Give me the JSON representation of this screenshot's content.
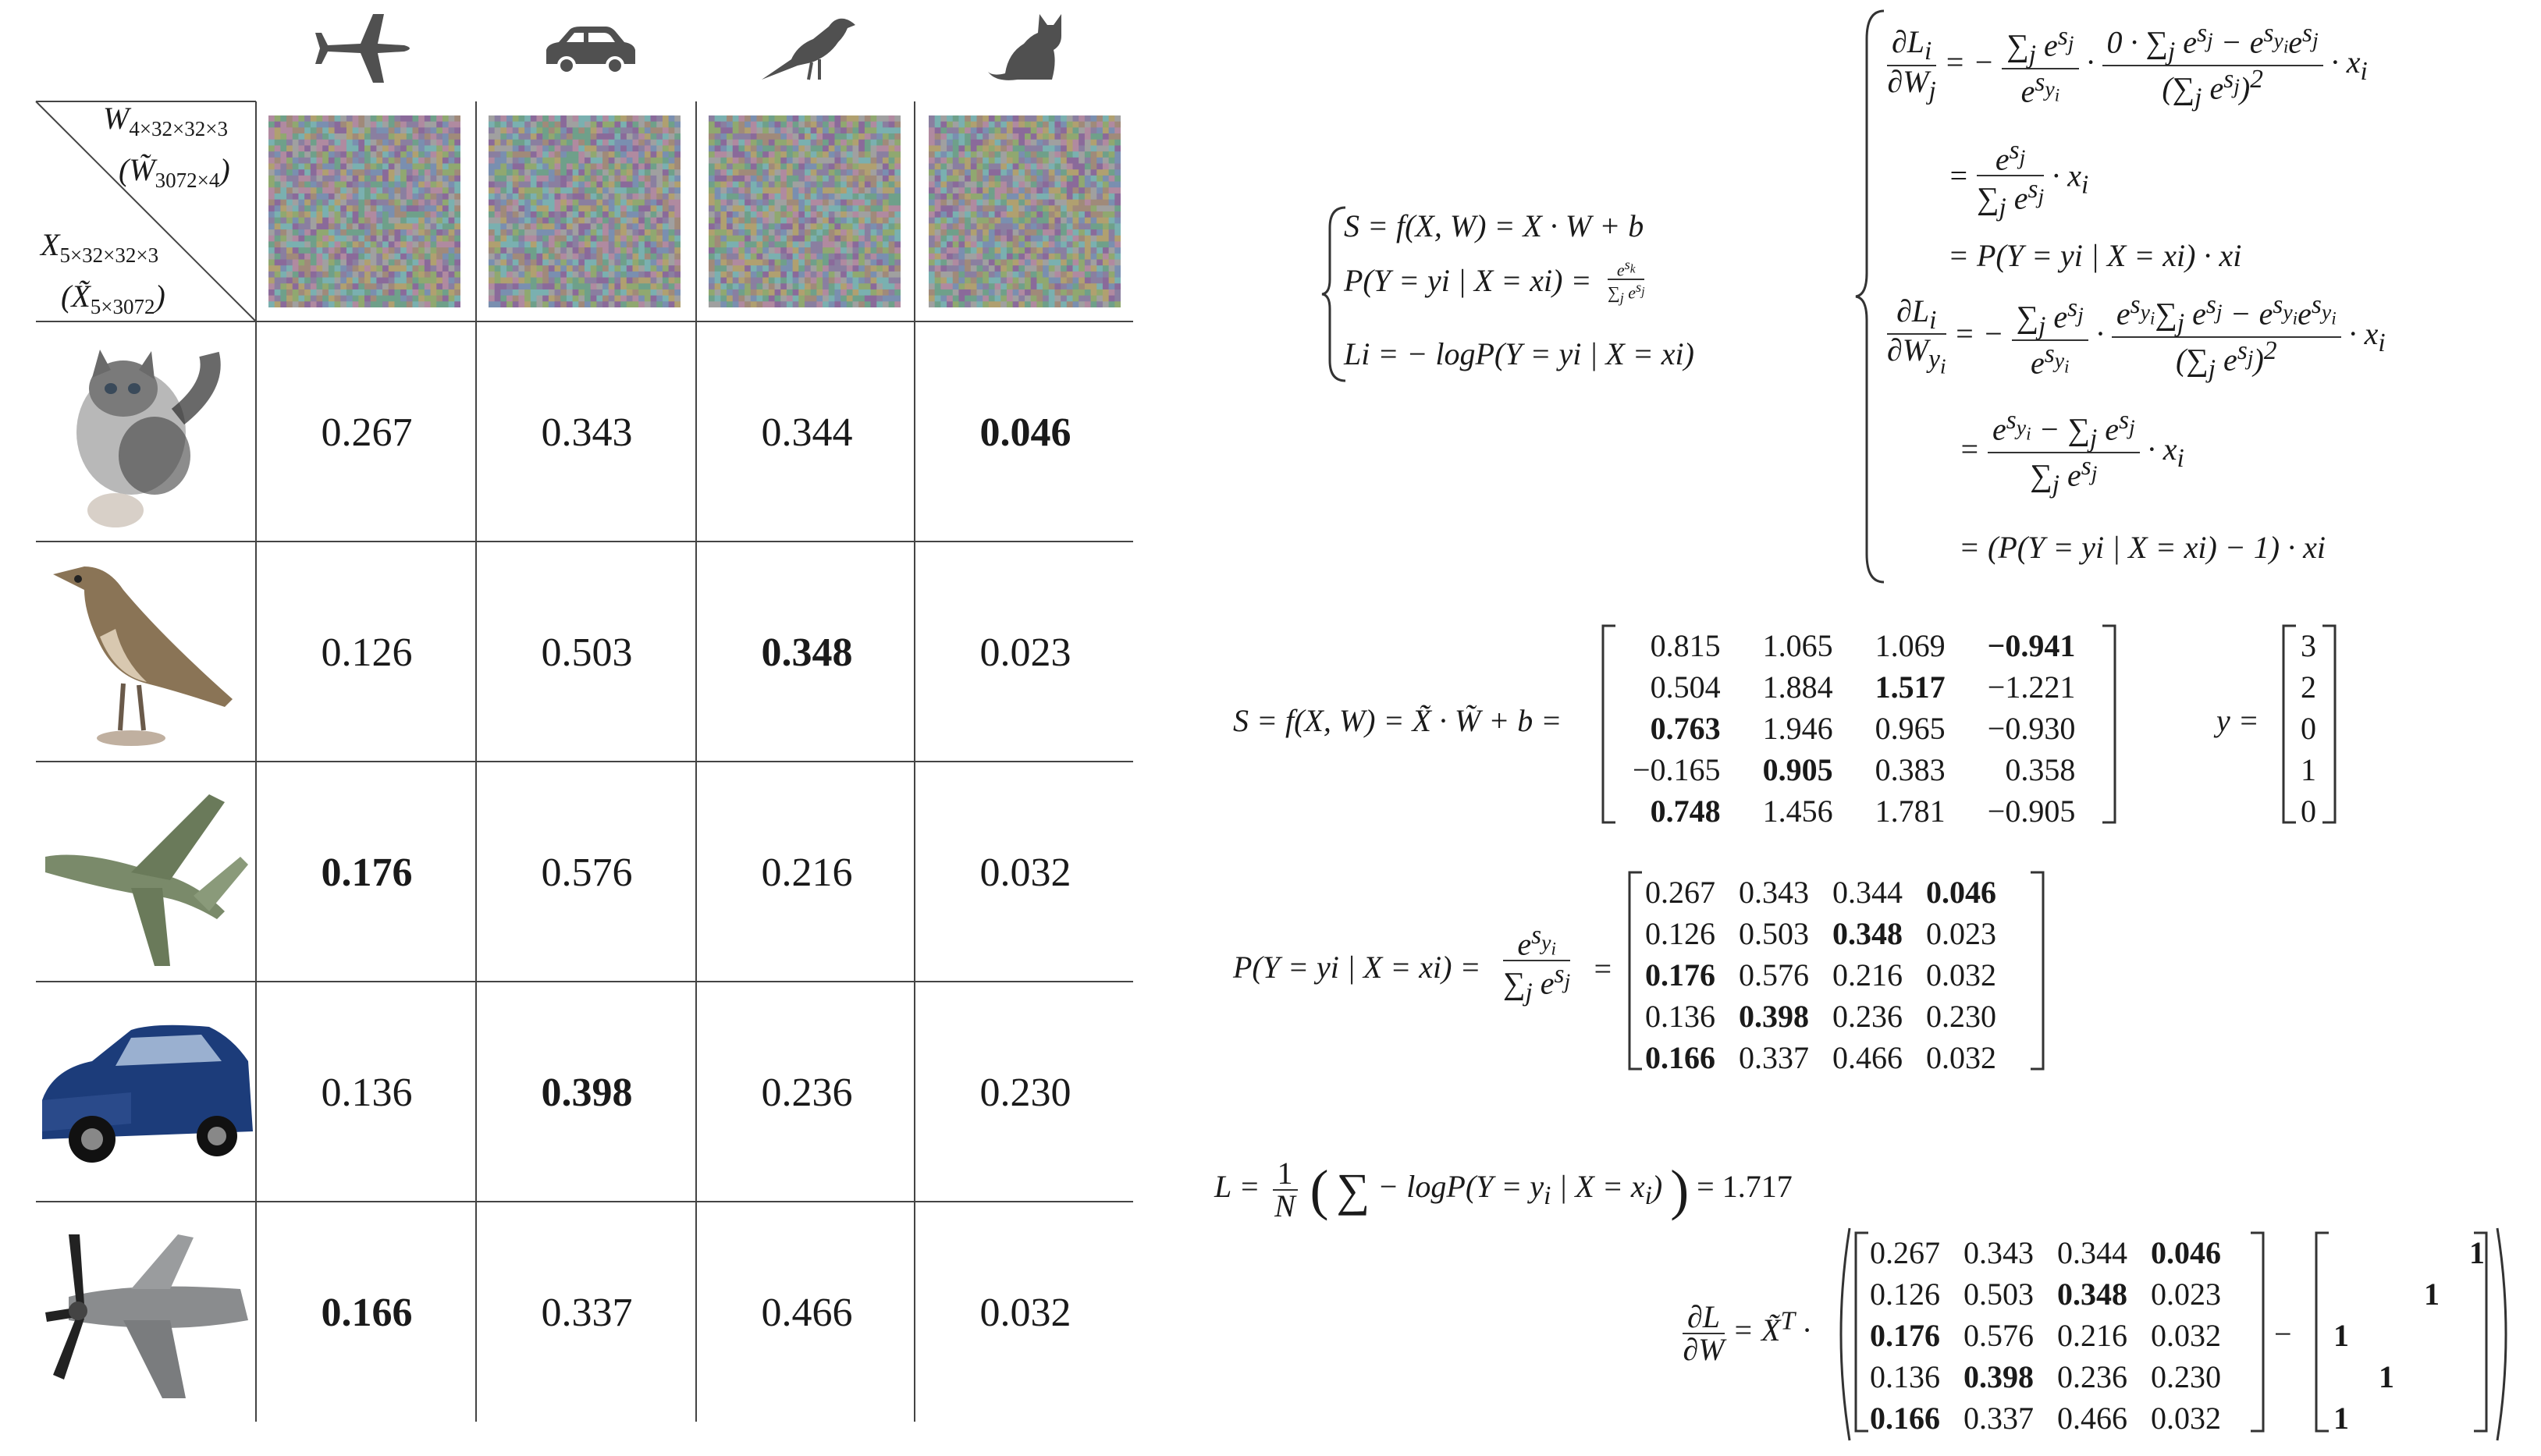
{
  "corner": {
    "w_label": "W",
    "w_sub": "4×32×32×3",
    "w_tilde_label": "(W̃",
    "w_tilde_sub": "3072×4",
    "w_tilde_close": ")",
    "x_label": "X",
    "x_sub": "5×32×32×3",
    "x_tilde_label": "(X̃",
    "x_tilde_sub": "5×3072",
    "x_tilde_close": ")"
  },
  "classes": [
    {
      "icon": "airplane-icon"
    },
    {
      "icon": "car-icon"
    },
    {
      "icon": "bird-icon"
    },
    {
      "icon": "cat-icon"
    }
  ],
  "rows": [
    {
      "image": "kitten-image",
      "cells": [
        "0.267",
        "0.343",
        "0.344",
        "0.046"
      ],
      "bold": 3
    },
    {
      "image": "bird-image",
      "cells": [
        "0.126",
        "0.503",
        "0.348",
        "0.023"
      ],
      "bold": 2
    },
    {
      "image": "warplane-image",
      "cells": [
        "0.176",
        "0.576",
        "0.216",
        "0.032"
      ],
      "bold": 0
    },
    {
      "image": "blue-car-image",
      "cells": [
        "0.136",
        "0.398",
        "0.236",
        "0.230"
      ],
      "bold": 1
    },
    {
      "image": "propeller-plane-image",
      "cells": [
        "0.166",
        "0.337",
        "0.466",
        "0.032"
      ],
      "bold": 0
    }
  ],
  "system": {
    "line1": "S = f(X, W) = X · W + b",
    "line2": "P(Y = yi | X = xi) =",
    "line3": "Li = − logP(Y = yi | X = xi)"
  },
  "gradient": {
    "eq1_lhs": "∂Li / ∂Wj",
    "eq1_a": "= P(Y = yi | X = xi) · xi",
    "eq2_last": "= (P(Y = yi | X = xi) − 1) · xi"
  },
  "score_matrix": {
    "lhs": "S = f(X, W) = X̃ · W̃ + b =",
    "rows": [
      [
        "0.815",
        "1.065",
        "1.069",
        "−0.941"
      ],
      [
        "0.504",
        "1.884",
        "1.517",
        "−1.221"
      ],
      [
        "0.763",
        "1.946",
        "0.965",
        "−0.930"
      ],
      [
        "−0.165",
        "0.905",
        "0.383",
        "0.358"
      ],
      [
        "0.748",
        "1.456",
        "1.781",
        "−0.905"
      ]
    ],
    "bold": [
      3,
      2,
      0,
      1,
      0
    ],
    "y_lhs": "y =",
    "y": [
      "3",
      "2",
      "0",
      "1",
      "0"
    ]
  },
  "prob_matrix": {
    "lhs": "P(Y = yi | X = xi) =",
    "rows": [
      [
        "0.267",
        "0.343",
        "0.344",
        "0.046"
      ],
      [
        "0.126",
        "0.503",
        "0.348",
        "0.023"
      ],
      [
        "0.176",
        "0.576",
        "0.216",
        "0.032"
      ],
      [
        "0.136",
        "0.398",
        "0.236",
        "0.230"
      ],
      [
        "0.166",
        "0.337",
        "0.466",
        "0.032"
      ]
    ],
    "bold": [
      3,
      2,
      0,
      1,
      0
    ]
  },
  "loss": {
    "value": "= 1.717"
  },
  "final": {
    "lhs": "∂L / ∂W = X̃ᵀ ·",
    "minus": "−",
    "onehot": [
      [
        "",
        "",
        "",
        "1"
      ],
      [
        "",
        "",
        "1",
        ""
      ],
      [
        "1",
        "",
        "",
        ""
      ],
      [
        "",
        "1",
        "",
        ""
      ],
      [
        "1",
        "",
        "",
        ""
      ]
    ]
  }
}
